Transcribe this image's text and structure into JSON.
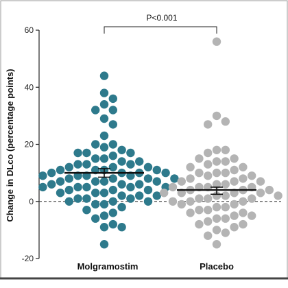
{
  "chart_data": {
    "type": "scatter",
    "subtype": "dot-plot",
    "title": "",
    "xlabel": "",
    "ylabel": "Change in DLco (percentage points)",
    "categories": [
      "Molgramostim",
      "Placebo"
    ],
    "ylim": [
      -20,
      60
    ],
    "yticks": [
      -20,
      0,
      20,
      40,
      60
    ],
    "reference_line": {
      "y": 0,
      "style": "dashed"
    },
    "annotation": {
      "text": "P<0.001",
      "between": [
        "Molgramostim",
        "Placebo"
      ]
    },
    "colors": {
      "Molgramostim": "#2e7a8c",
      "Placebo": "#b4b4b4"
    },
    "series": [
      {
        "category": "Molgramostim",
        "mean": 10,
        "ci": [
          8.5,
          11.5
        ],
        "values": [
          44,
          38,
          36,
          34,
          32,
          32,
          29,
          27,
          23,
          20,
          20,
          19,
          18,
          17,
          17,
          17,
          16,
          15,
          15,
          14,
          14,
          13,
          13,
          13,
          12,
          12,
          12,
          11,
          11,
          11,
          11,
          10,
          10,
          10,
          10,
          9,
          9,
          9,
          9,
          8,
          8,
          8,
          8,
          7,
          7,
          7,
          7,
          6,
          6,
          6,
          5,
          5,
          5,
          5,
          5,
          4,
          4,
          4,
          3,
          3,
          3,
          2,
          2,
          2,
          1,
          1,
          1,
          0,
          0,
          0,
          -1,
          -1,
          -2,
          -3,
          -4,
          -5,
          -6,
          -8,
          -9,
          -9,
          -15
        ]
      },
      {
        "category": "Placebo",
        "mean": 4,
        "ci": [
          2.5,
          5
        ],
        "values": [
          56,
          30,
          28,
          27,
          18,
          18,
          17,
          15,
          15,
          14,
          14,
          13,
          12,
          12,
          11,
          10,
          10,
          10,
          9,
          9,
          8,
          8,
          7,
          7,
          7,
          6,
          6,
          5,
          5,
          5,
          5,
          4,
          4,
          4,
          3,
          3,
          3,
          3,
          2,
          2,
          2,
          1,
          1,
          1,
          0,
          0,
          0,
          -1,
          -1,
          -2,
          -2,
          -3,
          -3,
          -4,
          -4,
          -5,
          -5,
          -6,
          -6,
          -7,
          -8,
          -8,
          -9,
          -10,
          -11,
          -12,
          -15
        ]
      }
    ]
  }
}
